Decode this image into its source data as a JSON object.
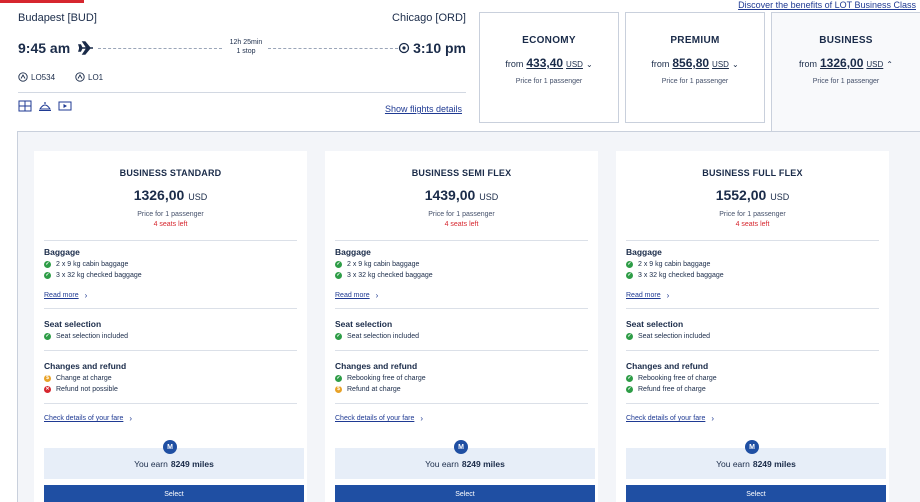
{
  "header": {
    "discover_link": "Discover the benefits of LOT Business Class"
  },
  "flight": {
    "from_city": "Budapest [BUD]",
    "to_city": "Chicago [ORD]",
    "dep_time": "9:45 am",
    "arr_time": "3:10 pm",
    "duration": "12h 25min",
    "stops": "1 stop",
    "flight_numbers": [
      "LO534",
      "LO1"
    ],
    "show_details": "Show flights details",
    "icons": [
      "plane-icon",
      "destination-icon",
      "lot-logo-icon",
      "seat-map-icon",
      "meal-icon",
      "entertainment-icon"
    ]
  },
  "cabins": [
    {
      "title": "ECONOMY",
      "from": "from",
      "price": "433,40",
      "currency": "USD",
      "sub": "Price for 1 passenger",
      "selected": false
    },
    {
      "title": "PREMIUM",
      "from": "from",
      "price": "856,80",
      "currency": "USD",
      "sub": "Price for 1 passenger",
      "selected": false
    },
    {
      "title": "BUSINESS",
      "from": "from",
      "price": "1326,00",
      "currency": "USD",
      "sub": "Price for 1 passenger",
      "selected": true
    }
  ],
  "fares": [
    {
      "title": "BUSINESS STANDARD",
      "price": "1326,00",
      "currency": "USD",
      "sub": "Price for 1 passenger",
      "seats": "4 seats left",
      "baggage_title": "Baggage",
      "baggage": [
        "2 x 9 kg cabin baggage",
        "3 x 32 kg checked baggage"
      ],
      "read_more": "Read more",
      "seat_title": "Seat selection",
      "seat": "Seat selection included",
      "changes_title": "Changes and refund",
      "changes": [
        {
          "text": "Change at charge",
          "status": "orange"
        },
        {
          "text": "Refund not possible",
          "status": "red"
        }
      ],
      "check_details": "Check details of your fare",
      "miles_badge": "M",
      "miles_prefix": "You earn",
      "miles_value": "8249 miles",
      "select": "Select"
    },
    {
      "title": "BUSINESS SEMI FLEX",
      "price": "1439,00",
      "currency": "USD",
      "sub": "Price for 1 passenger",
      "seats": "4 seats left",
      "baggage_title": "Baggage",
      "baggage": [
        "2 x 9 kg cabin baggage",
        "3 x 32 kg checked baggage"
      ],
      "read_more": "Read more",
      "seat_title": "Seat selection",
      "seat": "Seat selection included",
      "changes_title": "Changes and refund",
      "changes": [
        {
          "text": "Rebooking free of charge",
          "status": "green"
        },
        {
          "text": "Refund at charge",
          "status": "orange"
        }
      ],
      "check_details": "Check details of your fare",
      "miles_badge": "M",
      "miles_prefix": "You earn",
      "miles_value": "8249 miles",
      "select": "Select"
    },
    {
      "title": "BUSINESS FULL FLEX",
      "price": "1552,00",
      "currency": "USD",
      "sub": "Price for 1 passenger",
      "seats": "4 seats left",
      "baggage_title": "Baggage",
      "baggage": [
        "2 x 9 kg cabin baggage",
        "3 x 32 kg checked baggage"
      ],
      "read_more": "Read more",
      "seat_title": "Seat selection",
      "seat": "Seat selection included",
      "changes_title": "Changes and refund",
      "changes": [
        {
          "text": "Rebooking free of charge",
          "status": "green"
        },
        {
          "text": "Refund free of charge",
          "status": "green"
        }
      ],
      "check_details": "Check details of your fare",
      "miles_badge": "M",
      "miles_prefix": "You earn",
      "miles_value": "8249 miles",
      "select": "Select"
    }
  ],
  "colors": {
    "brand_blue": "#1f4fa3",
    "link_blue": "#1f3a93",
    "alert_red": "#d6262e",
    "ok_green": "#2e9d47",
    "warn_orange": "#e8a228"
  }
}
